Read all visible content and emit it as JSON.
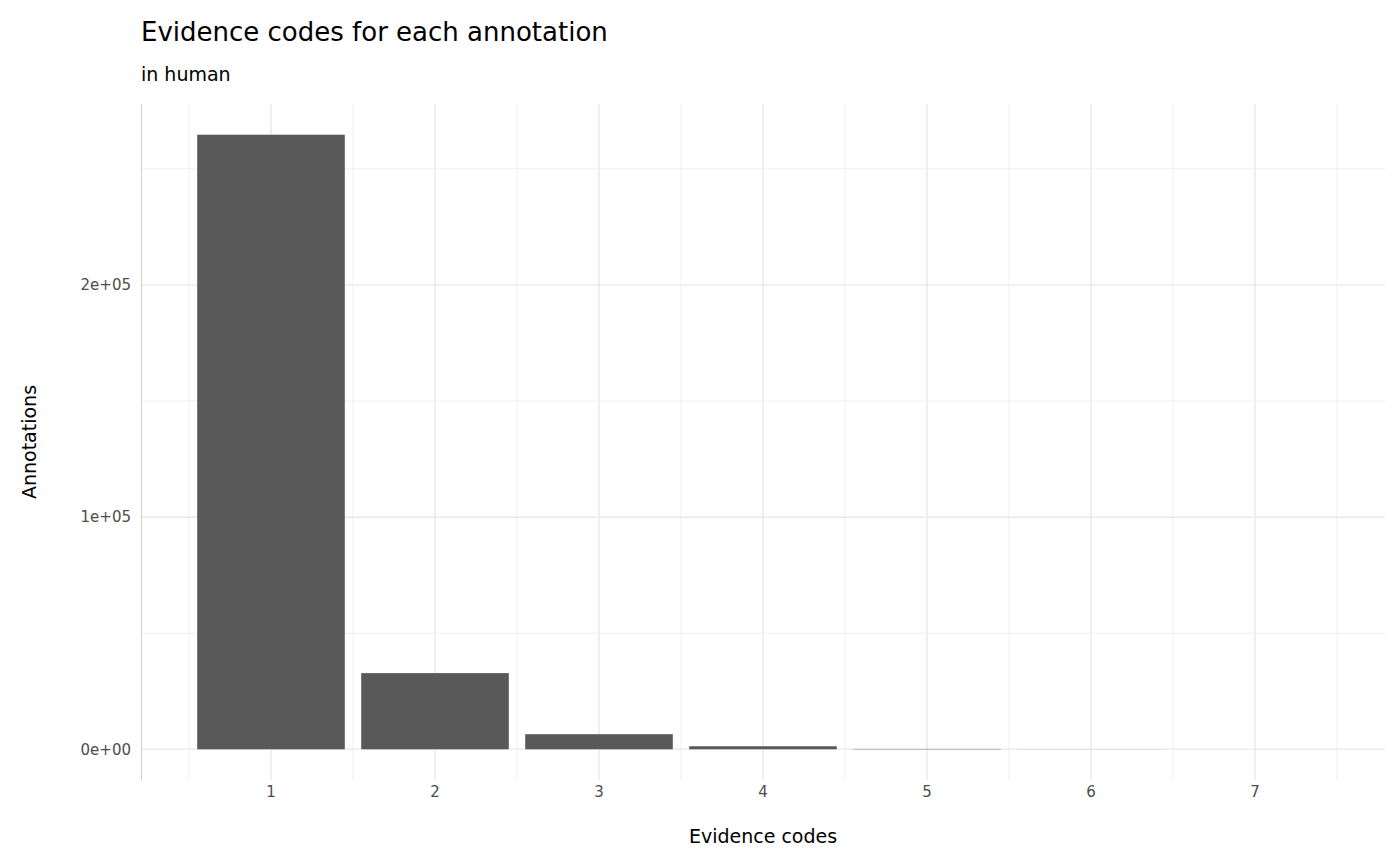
{
  "chart_data": {
    "type": "bar",
    "title": "Evidence codes for each annotation",
    "subtitle": "in human",
    "x_label": "Evidence codes",
    "y_label": "Annotations",
    "categories": [
      "1",
      "2",
      "3",
      "4",
      "5",
      "6",
      "7"
    ],
    "values": [
      264700,
      32800,
      6500,
      1300,
      150,
      30,
      5
    ],
    "color": "#595959",
    "ylim": [
      -13235,
      277935
    ],
    "yticks": [
      {
        "value": 0,
        "label": "0e+00"
      },
      {
        "value": 100000,
        "label": "1e+05"
      },
      {
        "value": 200000,
        "label": "2e+05"
      }
    ],
    "grid": true
  }
}
